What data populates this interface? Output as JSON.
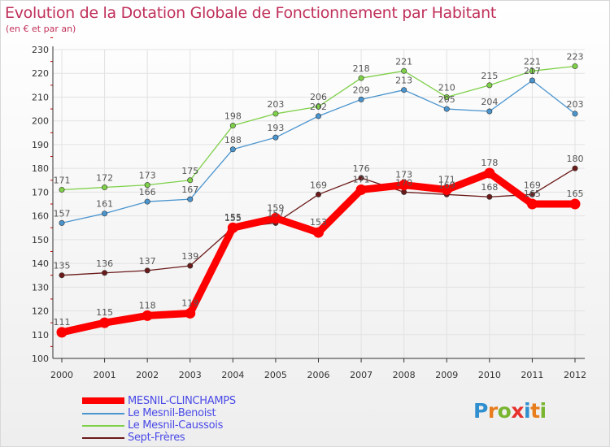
{
  "header": {
    "title": "Evolution de la Dotation Globale de Fonctionnement par Habitant",
    "subtitle": "(en € et par an)"
  },
  "logo": {
    "letters": [
      "P",
      "r",
      "o",
      "x",
      "i",
      "t",
      "i"
    ]
  },
  "colors": {
    "title": "#c0305a",
    "axis": "#333333",
    "grid": "#e2e2e2",
    "label": "#555555",
    "tick_red": "#cc0000"
  },
  "chart_data": {
    "type": "line",
    "title": "Evolution de la Dotation Globale de Fonctionnement par Habitant",
    "subtitle": "(en € et par an)",
    "xlabel": "",
    "ylabel": "",
    "x": [
      "2000",
      "2001",
      "2002",
      "2003",
      "2004",
      "2005",
      "2006",
      "2007",
      "2008",
      "2009",
      "2010",
      "2011",
      "2012"
    ],
    "ylim": [
      100,
      230
    ],
    "yticks": [
      100,
      110,
      120,
      130,
      140,
      150,
      160,
      170,
      180,
      190,
      200,
      210,
      220,
      230
    ],
    "grid": true,
    "legend_position": "bottom-left",
    "series": [
      {
        "name": "MESNIL-CLINCHAMPS",
        "color": "#ff0000",
        "values": [
          111,
          115,
          118,
          119,
          155,
          159,
          153,
          171,
          173,
          171,
          178,
          165,
          165
        ]
      },
      {
        "name": "Le Mesnil-Benoist",
        "color": "#4b95cf",
        "values": [
          157,
          161,
          166,
          167,
          188,
          193,
          202,
          209,
          213,
          205,
          204,
          217,
          203
        ]
      },
      {
        "name": "Le Mesnil-Caussois",
        "color": "#7ed048",
        "values": [
          171,
          172,
          173,
          175,
          198,
          203,
          206,
          218,
          221,
          210,
          215,
          221,
          223
        ]
      },
      {
        "name": "Sept-Frères",
        "color": "#6b1a1a",
        "values": [
          135,
          136,
          137,
          139,
          155,
          157,
          169,
          176,
          170,
          169,
          168,
          169,
          180
        ]
      }
    ]
  }
}
